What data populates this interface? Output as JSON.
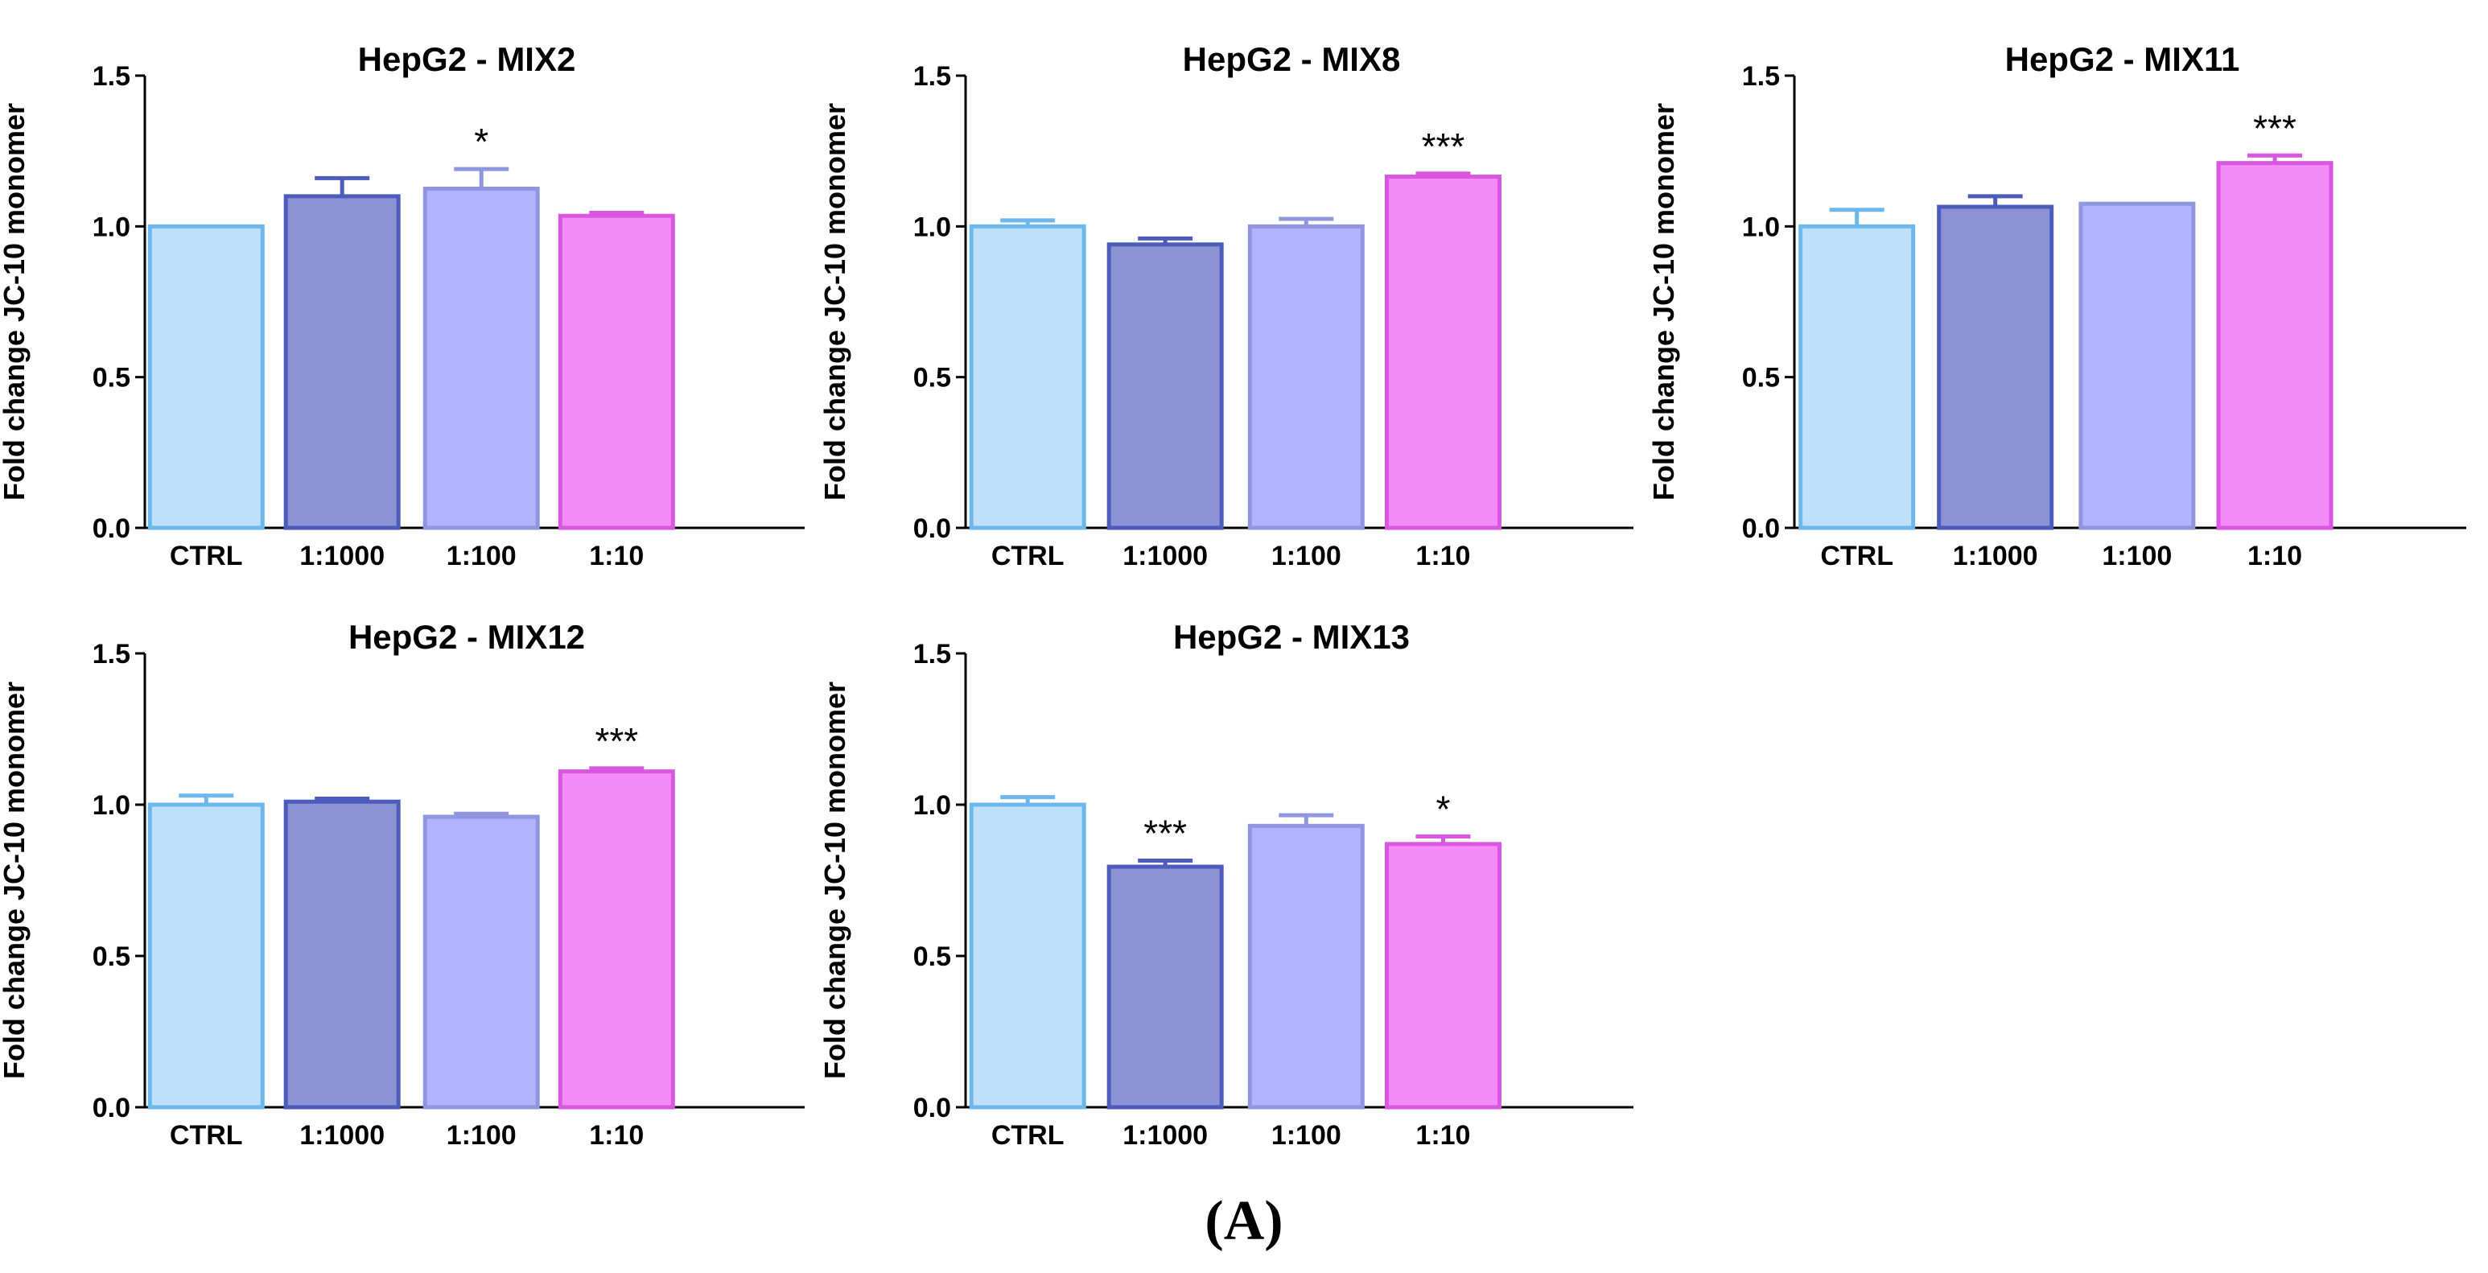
{
  "figure_label": "(A)",
  "colors": {
    "bars": [
      {
        "fill": "#c0e0fa",
        "stroke": "#6cb8ee"
      },
      {
        "fill": "#8b93d2",
        "stroke": "#4d5cbc"
      },
      {
        "fill": "#b1b3fc",
        "stroke": "#8f96df"
      },
      {
        "fill": "#f58bf7",
        "stroke": "#d957e0"
      }
    ]
  },
  "chart_data": [
    {
      "type": "bar",
      "title": "HepG2 - MIX2",
      "ylabel": "Fold change JC-10 monomer",
      "categories": [
        "CTRL",
        "1:1000",
        "1:100",
        "1:10"
      ],
      "values": [
        1.0,
        1.1,
        1.125,
        1.035
      ],
      "errors": [
        0.0,
        0.06,
        0.065,
        0.01
      ],
      "significance": [
        "",
        "",
        "*",
        ""
      ],
      "ylim": [
        0,
        1.5
      ],
      "yticks": [
        "0.0",
        "0.5",
        "1.0",
        "1.5"
      ]
    },
    {
      "type": "bar",
      "title": "HepG2 - MIX8",
      "ylabel": "Fold change JC-10 monomer",
      "categories": [
        "CTRL",
        "1:1000",
        "1:100",
        "1:10"
      ],
      "values": [
        1.0,
        0.94,
        1.0,
        1.165
      ],
      "errors": [
        0.02,
        0.02,
        0.025,
        0.01
      ],
      "significance": [
        "",
        "",
        "",
        "***"
      ],
      "ylim": [
        0,
        1.5
      ],
      "yticks": [
        "0.0",
        "0.5",
        "1.0",
        "1.5"
      ]
    },
    {
      "type": "bar",
      "title": "HepG2 - MIX11",
      "ylabel": "Fold change JC-10 monomer",
      "categories": [
        "CTRL",
        "1:1000",
        "1:100",
        "1:10"
      ],
      "values": [
        1.0,
        1.065,
        1.075,
        1.21
      ],
      "errors": [
        0.055,
        0.035,
        0.0,
        0.025
      ],
      "significance": [
        "",
        "",
        "",
        "***"
      ],
      "ylim": [
        0,
        1.5
      ],
      "yticks": [
        "0.0",
        "0.5",
        "1.0",
        "1.5"
      ]
    },
    {
      "type": "bar",
      "title": "HepG2 - MIX12",
      "ylabel": "Fold change JC-10 monomer",
      "categories": [
        "CTRL",
        "1:1000",
        "1:100",
        "1:10"
      ],
      "values": [
        1.0,
        1.01,
        0.96,
        1.11
      ],
      "errors": [
        0.03,
        0.01,
        0.01,
        0.01
      ],
      "significance": [
        "",
        "",
        "",
        "***"
      ],
      "ylim": [
        0,
        1.5
      ],
      "yticks": [
        "0.0",
        "0.5",
        "1.0",
        "1.5"
      ]
    },
    {
      "type": "bar",
      "title": "HepG2 - MIX13",
      "ylabel": "Fold change JC-10 monomer",
      "categories": [
        "CTRL",
        "1:1000",
        "1:100",
        "1:10"
      ],
      "values": [
        1.0,
        0.795,
        0.93,
        0.87
      ],
      "errors": [
        0.025,
        0.02,
        0.035,
        0.025
      ],
      "significance": [
        "",
        "***",
        "",
        "*"
      ],
      "ylim": [
        0,
        1.5
      ],
      "yticks": [
        "0.0",
        "0.5",
        "1.0",
        "1.5"
      ]
    }
  ]
}
